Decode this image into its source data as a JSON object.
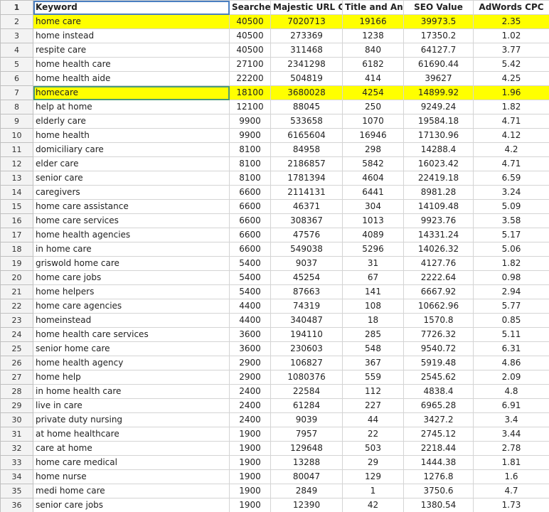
{
  "columns": [
    "Keyword",
    "Searches",
    "Majestic URL Com",
    "Title and Anch",
    "SEO Value",
    "AdWords CPC"
  ],
  "rows": [
    {
      "n": "2",
      "hl": true,
      "cells": [
        "home care",
        "40500",
        "7020713",
        "19166",
        "39973.5",
        "2.35"
      ]
    },
    {
      "n": "3",
      "hl": false,
      "cells": [
        "home instead",
        "40500",
        "273369",
        "1238",
        "17350.2",
        "1.02"
      ]
    },
    {
      "n": "4",
      "hl": false,
      "cells": [
        "respite care",
        "40500",
        "311468",
        "840",
        "64127.7",
        "3.77"
      ]
    },
    {
      "n": "5",
      "hl": false,
      "cells": [
        "home health care",
        "27100",
        "2341298",
        "6182",
        "61690.44",
        "5.42"
      ]
    },
    {
      "n": "6",
      "hl": false,
      "cells": [
        "home health aide",
        "22200",
        "504819",
        "414",
        "39627",
        "4.25"
      ]
    },
    {
      "n": "7",
      "hl": true,
      "cells": [
        "homecare",
        "18100",
        "3680028",
        "4254",
        "14899.92",
        "1.96"
      ]
    },
    {
      "n": "8",
      "hl": false,
      "cells": [
        "help at home",
        "12100",
        "88045",
        "250",
        "9249.24",
        "1.82"
      ]
    },
    {
      "n": "9",
      "hl": false,
      "cells": [
        "elderly care",
        "9900",
        "533658",
        "1070",
        "19584.18",
        "4.71"
      ]
    },
    {
      "n": "10",
      "hl": false,
      "cells": [
        "home health",
        "9900",
        "6165604",
        "16946",
        "17130.96",
        "4.12"
      ]
    },
    {
      "n": "11",
      "hl": false,
      "cells": [
        "domiciliary care",
        "8100",
        "84958",
        "298",
        "14288.4",
        "4.2"
      ]
    },
    {
      "n": "12",
      "hl": false,
      "cells": [
        "elder care",
        "8100",
        "2186857",
        "5842",
        "16023.42",
        "4.71"
      ]
    },
    {
      "n": "13",
      "hl": false,
      "cells": [
        "senior care",
        "8100",
        "1781394",
        "4604",
        "22419.18",
        "6.59"
      ]
    },
    {
      "n": "14",
      "hl": false,
      "cells": [
        "caregivers",
        "6600",
        "2114131",
        "6441",
        "8981.28",
        "3.24"
      ]
    },
    {
      "n": "15",
      "hl": false,
      "cells": [
        "home care assistance",
        "6600",
        "46371",
        "304",
        "14109.48",
        "5.09"
      ]
    },
    {
      "n": "16",
      "hl": false,
      "cells": [
        "home care services",
        "6600",
        "308367",
        "1013",
        "9923.76",
        "3.58"
      ]
    },
    {
      "n": "17",
      "hl": false,
      "cells": [
        "home health agencies",
        "6600",
        "47576",
        "4089",
        "14331.24",
        "5.17"
      ]
    },
    {
      "n": "18",
      "hl": false,
      "cells": [
        "in home care",
        "6600",
        "549038",
        "5296",
        "14026.32",
        "5.06"
      ]
    },
    {
      "n": "19",
      "hl": false,
      "cells": [
        "griswold home care",
        "5400",
        "9037",
        "31",
        "4127.76",
        "1.82"
      ]
    },
    {
      "n": "20",
      "hl": false,
      "cells": [
        "home care jobs",
        "5400",
        "45254",
        "67",
        "2222.64",
        "0.98"
      ]
    },
    {
      "n": "21",
      "hl": false,
      "cells": [
        "home helpers",
        "5400",
        "87663",
        "141",
        "6667.92",
        "2.94"
      ]
    },
    {
      "n": "22",
      "hl": false,
      "cells": [
        "home care agencies",
        "4400",
        "74319",
        "108",
        "10662.96",
        "5.77"
      ]
    },
    {
      "n": "23",
      "hl": false,
      "cells": [
        "homeinstead",
        "4400",
        "340487",
        "18",
        "1570.8",
        "0.85"
      ]
    },
    {
      "n": "24",
      "hl": false,
      "cells": [
        "home health care services",
        "3600",
        "194110",
        "285",
        "7726.32",
        "5.11"
      ]
    },
    {
      "n": "25",
      "hl": false,
      "cells": [
        "senior home care",
        "3600",
        "230603",
        "548",
        "9540.72",
        "6.31"
      ]
    },
    {
      "n": "26",
      "hl": false,
      "cells": [
        "home health agency",
        "2900",
        "106827",
        "367",
        "5919.48",
        "4.86"
      ]
    },
    {
      "n": "27",
      "hl": false,
      "cells": [
        "home help",
        "2900",
        "1080376",
        "559",
        "2545.62",
        "2.09"
      ]
    },
    {
      "n": "28",
      "hl": false,
      "cells": [
        "in home health care",
        "2400",
        "22584",
        "112",
        "4838.4",
        "4.8"
      ]
    },
    {
      "n": "29",
      "hl": false,
      "cells": [
        "live in care",
        "2400",
        "61284",
        "227",
        "6965.28",
        "6.91"
      ]
    },
    {
      "n": "30",
      "hl": false,
      "cells": [
        "private duty nursing",
        "2400",
        "9039",
        "44",
        "3427.2",
        "3.4"
      ]
    },
    {
      "n": "31",
      "hl": false,
      "cells": [
        "at home healthcare",
        "1900",
        "7957",
        "22",
        "2745.12",
        "3.44"
      ]
    },
    {
      "n": "32",
      "hl": false,
      "cells": [
        "care at home",
        "1900",
        "129648",
        "503",
        "2218.44",
        "2.78"
      ]
    },
    {
      "n": "33",
      "hl": false,
      "cells": [
        "home care medical",
        "1900",
        "13288",
        "29",
        "1444.38",
        "1.81"
      ]
    },
    {
      "n": "34",
      "hl": false,
      "cells": [
        "home nurse",
        "1900",
        "80047",
        "129",
        "1276.8",
        "1.6"
      ]
    },
    {
      "n": "35",
      "hl": false,
      "cells": [
        "medi home care",
        "1900",
        "2849",
        "1",
        "3750.6",
        "4.7"
      ]
    },
    {
      "n": "36",
      "hl": false,
      "cells": [
        "senior care jobs",
        "1900",
        "12390",
        "42",
        "1380.54",
        "1.73"
      ]
    }
  ],
  "colors": {
    "highlight": "#ffff00",
    "selection": "#4a7fc1",
    "active_cell": "#4a9a7a"
  }
}
